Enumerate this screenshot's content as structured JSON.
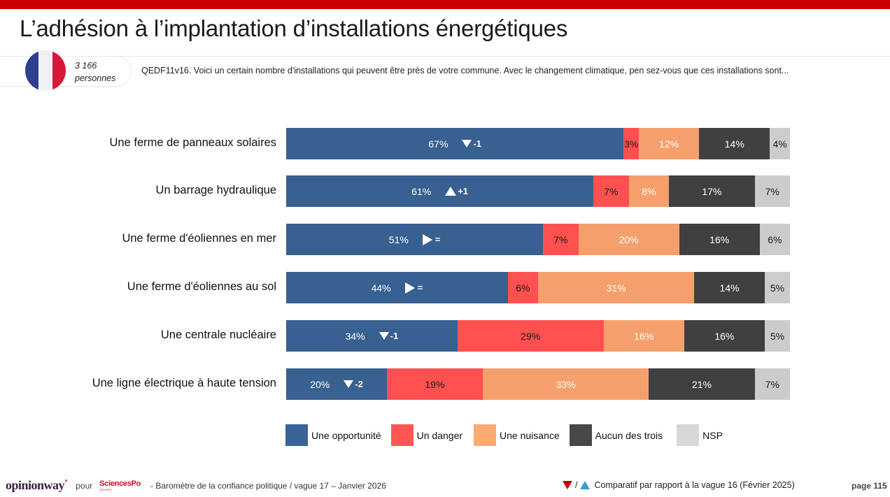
{
  "header": {
    "title": "L’adhésion à l’implantation d’installations énergétiques",
    "sample_count_line1": "3 166",
    "sample_count_line2": "personnes",
    "question": "QEDF11v16. Voici un certain nombre d'installations qui peuvent être près de votre commune. Avec le changement climatique, pen sez-vous que ces installations sont..."
  },
  "colors": {
    "top_bar": "#cc0000",
    "opportunite": "#386090",
    "danger": "#ff5050",
    "nuisance": "#f5a06c",
    "aucun": "#404040",
    "nsp": "#cccccc"
  },
  "chart_data": {
    "type": "bar",
    "orientation": "horizontal-stacked-100",
    "title": "L’adhésion à l’implantation d’installations énergétiques",
    "xlabel": "",
    "ylabel": "",
    "xlim": [
      0,
      100
    ],
    "grid": false,
    "legend_position": "bottom",
    "categories": [
      "Une ferme de panneaux solaires",
      "Un barrage hydraulique",
      "Une ferme d'éoliennes en mer",
      "Une ferme d'éoliennes au sol",
      "Une centrale nucléaire",
      "Une ligne électrique à haute tension"
    ],
    "series": [
      {
        "name": "Une opportunité",
        "key": "opportunite",
        "values": [
          67,
          61,
          51,
          44,
          34,
          20
        ]
      },
      {
        "name": "Un danger",
        "key": "danger",
        "values": [
          3,
          7,
          7,
          6,
          29,
          19
        ]
      },
      {
        "name": "Une nuisance",
        "key": "nuisance",
        "values": [
          12,
          8,
          20,
          31,
          16,
          33
        ]
      },
      {
        "name": "Aucun des trois",
        "key": "aucun",
        "values": [
          14,
          17,
          16,
          14,
          16,
          21
        ]
      },
      {
        "name": "NSP",
        "key": "nsp",
        "values": [
          4,
          7,
          6,
          5,
          5,
          7
        ]
      }
    ],
    "labels": [
      [
        "67%",
        "3%",
        "12%",
        "14%",
        "4%"
      ],
      [
        "61%",
        "7%",
        "8%",
        "17%",
        "7%"
      ],
      [
        "51%",
        "7%",
        "20%",
        "16%",
        "6%"
      ],
      [
        "44%",
        "6%",
        "31%",
        "14%",
        "5%"
      ],
      [
        "34%",
        "29%",
        "16%",
        "16%",
        "5%"
      ],
      [
        "20%",
        "19%",
        "33%",
        "21%",
        "7%"
      ]
    ],
    "evolution_vs_previous_wave": [
      {
        "direction": "down",
        "text": "-1"
      },
      {
        "direction": "up",
        "text": "+1"
      },
      {
        "direction": "equal",
        "text": "="
      },
      {
        "direction": "equal",
        "text": "="
      },
      {
        "direction": "down",
        "text": "-1"
      },
      {
        "direction": "down",
        "text": "-2"
      }
    ]
  },
  "footer": {
    "brand": "opinionway",
    "pour": "pour",
    "partner": "SciencesPo",
    "partner_sub": "CEVIPOF",
    "study": "-  Baromètre de la confiance politique / vague 17 – Janvier 2026",
    "comparison_note": "Comparatif par rapport à la vague 16 (Février 2025)",
    "page": "page 115"
  }
}
